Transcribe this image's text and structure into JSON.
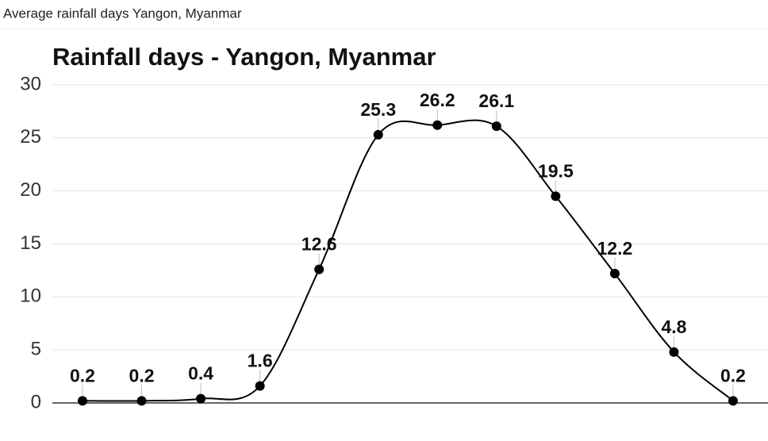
{
  "caption": "Average rainfall days Yangon, Myanmar",
  "chart_data": {
    "type": "line",
    "title": "Rainfall days - Yangon, Myanmar",
    "values": [
      0.2,
      0.2,
      0.4,
      1.6,
      12.6,
      25.3,
      26.2,
      26.1,
      19.5,
      12.2,
      4.8,
      0.2
    ],
    "color": "#000000",
    "ylim": [
      0,
      30
    ],
    "yticks": [
      0,
      5,
      10,
      15,
      20,
      25,
      30
    ],
    "grid": true
  }
}
